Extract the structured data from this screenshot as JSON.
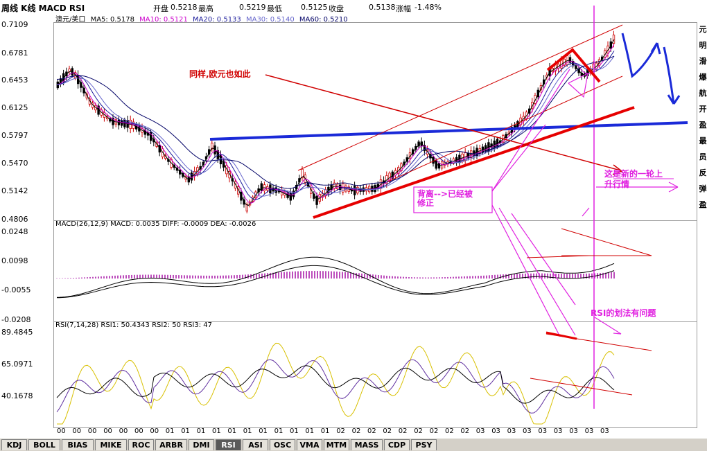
{
  "header": {
    "title": "周线 K线 MACD RSI",
    "open_label": "开盘",
    "open_value": "0.5218",
    "high_label": "最高",
    "high_value": "0.5219",
    "low_label": "最低",
    "low_value": "0.5125",
    "close_label": "收盘",
    "close_value": "0.5138",
    "change_label": "涨幅",
    "change_value": "-1.48%"
  },
  "price_panel": {
    "symbol": "澳元/美口",
    "ma5": "MA5: 0.5178",
    "ma10": "MA10: 0.5121",
    "ma20": "MA20: 0.5133",
    "ma30": "MA30: 0.5140",
    "ma60": "MA60: 0.5210",
    "y_labels": [
      "0.7109",
      "0.6781",
      "0.6453",
      "0.6125",
      "0.5797",
      "0.5470",
      "0.5142",
      "0.4806"
    ]
  },
  "macd_panel": {
    "label": "MACD(26,12,9) MACD: 0.0035 DIFF: -0.0009 DEA: -0.0026",
    "y_labels": [
      "0.0248",
      "0.0098",
      "-0.0055",
      "-0.0208"
    ]
  },
  "rsi_panel": {
    "label": "RSI(7,14,28) RSI1: 50.4343 RSI2: 50 RSI3: 47",
    "y_labels": [
      "89.4845",
      "65.0971",
      "40.1678"
    ]
  },
  "x_axis_labels": [
    "00",
    "00",
    "00",
    "00",
    "00",
    "00",
    "00",
    "01",
    "01",
    "01",
    "01",
    "01",
    "01",
    "01",
    "01",
    "01",
    "01",
    "01",
    "02",
    "02",
    "02",
    "02",
    "02",
    "02",
    "02",
    "02",
    "02",
    "03",
    "03",
    "03",
    "03",
    "03",
    "03",
    "03",
    "03",
    "03"
  ],
  "annotations": {
    "same_euro": "同样,欧元也如此",
    "divergence": "背离-->已经被\n修正",
    "new_round": "这是新的一轮上\n升行情",
    "rsi_problem": "RSI的划法有问题"
  },
  "right_strip": [
    "元",
    "明",
    "滑",
    "爆",
    "航",
    "开",
    "盈",
    "最",
    "员",
    "反",
    "弹",
    "盈"
  ],
  "tabs": [
    "KDJ",
    "BOLL",
    "BIAS",
    "MIKE",
    "ROC",
    "ARBR",
    "DMI",
    "RSI",
    "ASI",
    "OSC",
    "VMA",
    "MTM",
    "MASS",
    "CDP",
    "PSY"
  ],
  "active_tab": "RSI",
  "colors": {
    "candle_up": "#cc0000",
    "candle_down": "#000000",
    "ma5": "#000000",
    "ma10": "#cc00cc",
    "ma20": "#1a1a9a",
    "ma30": "#6666cc",
    "ma60": "#000066",
    "blue_trend": "#1a2ad8",
    "red_trend": "#e60000",
    "magenta": "#e020e0"
  }
}
